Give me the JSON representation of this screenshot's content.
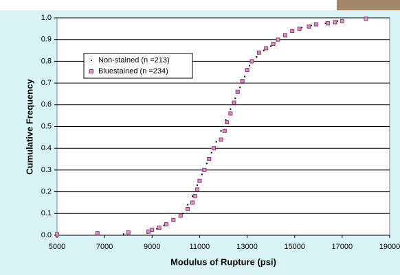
{
  "chart_data": {
    "type": "scatter",
    "x_label": "Modulus of Rupture (psi)",
    "y_label": "Cumulative Frequency",
    "xlim": [
      5000,
      19000
    ],
    "xticks": [
      5000,
      7000,
      9000,
      11000,
      13000,
      15000,
      17000,
      19000
    ],
    "ylim": [
      0,
      1
    ],
    "yticks": [
      {
        "value": 0,
        "label": "0.0"
      },
      0.1,
      0.2,
      0.3,
      0.4,
      0.5,
      0.6,
      0.7,
      0.8,
      0.9,
      {
        "value": 1,
        "label": "1.0"
      }
    ],
    "grid": true,
    "legend": "upper left",
    "series": [
      {
        "name": "Non-stained (n =213)",
        "color": "#000000",
        "x": [
          7800,
          8800,
          9200,
          9500,
          9900,
          10300,
          10500,
          10700,
          10900,
          11100,
          11300,
          11500,
          11700,
          11900,
          12100,
          12300,
          12500,
          12700,
          12900,
          13100,
          13400,
          13700,
          14000,
          14300,
          14600,
          14900,
          15300,
          15700,
          16300,
          16800
        ],
        "values": [
          0.005,
          0.01,
          0.03,
          0.045,
          0.07,
          0.1,
          0.14,
          0.18,
          0.23,
          0.28,
          0.33,
          0.38,
          0.43,
          0.48,
          0.53,
          0.58,
          0.63,
          0.68,
          0.73,
          0.78,
          0.82,
          0.85,
          0.87,
          0.9,
          0.92,
          0.94,
          0.955,
          0.965,
          0.975,
          0.985
        ]
      },
      {
        "name": "Bluestained (n =234)",
        "color": "#993366",
        "x": [
          5000,
          6700,
          8000,
          8850,
          9000,
          9300,
          9600,
          9900,
          10200,
          10500,
          10700,
          10800,
          10900,
          11000,
          11200,
          11400,
          11600,
          11900,
          12050,
          12150,
          12300,
          12450,
          12600,
          12800,
          13000,
          13200,
          13500,
          13800,
          14100,
          14300,
          14600,
          14900,
          15200,
          15600,
          15900,
          16400,
          16700,
          17000,
          18000
        ],
        "values": [
          0.004,
          0.009,
          0.013,
          0.017,
          0.025,
          0.035,
          0.05,
          0.07,
          0.09,
          0.12,
          0.15,
          0.18,
          0.21,
          0.25,
          0.3,
          0.35,
          0.4,
          0.44,
          0.48,
          0.52,
          0.56,
          0.61,
          0.66,
          0.71,
          0.76,
          0.8,
          0.84,
          0.86,
          0.88,
          0.9,
          0.92,
          0.94,
          0.95,
          0.96,
          0.97,
          0.975,
          0.98,
          0.985,
          0.996
        ]
      }
    ]
  }
}
